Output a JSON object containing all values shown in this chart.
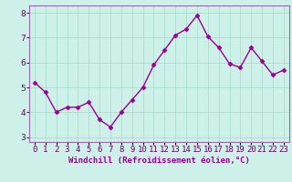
{
  "x": [
    0,
    1,
    2,
    3,
    4,
    5,
    6,
    7,
    8,
    9,
    10,
    11,
    12,
    13,
    14,
    15,
    16,
    17,
    18,
    19,
    20,
    21,
    22,
    23
  ],
  "y": [
    5.2,
    4.8,
    4.0,
    4.2,
    4.2,
    4.4,
    3.7,
    3.4,
    4.0,
    4.5,
    5.0,
    5.9,
    6.5,
    7.1,
    7.35,
    7.9,
    7.05,
    6.6,
    5.95,
    5.8,
    6.6,
    6.05,
    5.5,
    5.7
  ],
  "line_color": "#990099",
  "marker": "D",
  "marker_size": 2.5,
  "bg_color": "#cdf0e8",
  "grid_color": "#aaddcc",
  "xlabel": "Windchill (Refroidissement éolien,°C)",
  "xlabel_color": "#990099",
  "ylim": [
    2.8,
    8.3
  ],
  "yticks": [
    3,
    4,
    5,
    6,
    7,
    8
  ],
  "linewidth": 1.0,
  "tick_fontsize": 6.5,
  "xlabel_fontsize": 6.5
}
